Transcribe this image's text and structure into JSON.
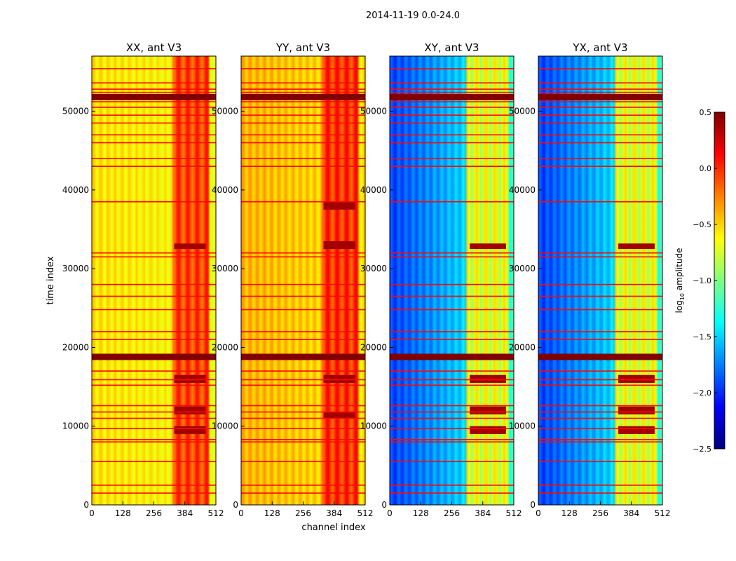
{
  "chart_data": {
    "type": "heatmap",
    "title": "2014-11-19 0.0-24.0",
    "xlabel": "channel index",
    "ylabel": "time index",
    "colorbar": {
      "label": "log10 amplitude",
      "label_base": "log",
      "label_sub": "10",
      "label_rest": " amplitude",
      "range": [
        -2.5,
        0.5
      ],
      "ticks": [
        0.5,
        0.0,
        -0.5,
        -1.0,
        -1.5,
        -2.0,
        -2.5
      ],
      "tick_labels": [
        "0.5",
        "0.0",
        "−0.5",
        "−1.0",
        "−1.5",
        "−2.0",
        "−2.5"
      ],
      "colormap": "jet"
    },
    "xlim": [
      0,
      512
    ],
    "ylim": [
      0,
      57000
    ],
    "x_ticks": [
      0,
      128,
      256,
      384,
      512
    ],
    "y_ticks": [
      0,
      10000,
      20000,
      30000,
      40000,
      50000
    ],
    "panels": [
      {
        "title": "XX, ant V3",
        "base": [
          -0.55,
          -0.65
        ],
        "busy": [
          -0.25,
          0.1
        ],
        "busy_range": [
          330,
          480
        ],
        "strong_bands": [
          [
            9000,
            10000
          ],
          [
            11500,
            12500
          ],
          [
            15500,
            16500
          ],
          [
            32500,
            33200
          ]
        ]
      },
      {
        "title": "YY, ant V3",
        "base": [
          -0.4,
          -0.55
        ],
        "busy": [
          -0.2,
          0.15
        ],
        "busy_range": [
          330,
          480
        ],
        "strong_bands": [
          [
            11000,
            11800
          ],
          [
            15500,
            16500
          ],
          [
            32500,
            33500
          ],
          [
            37500,
            38500
          ]
        ]
      },
      {
        "title": "XY, ant V3",
        "base": [
          -1.95,
          -1.2
        ],
        "busy": [
          -0.9,
          -0.5
        ],
        "busy_range": [
          320,
          490
        ],
        "strong_bands": [
          [
            9000,
            10000
          ],
          [
            11500,
            12500
          ],
          [
            15500,
            16500
          ],
          [
            32500,
            33200
          ]
        ]
      },
      {
        "title": "YX, ant V3",
        "base": [
          -1.95,
          -1.2
        ],
        "busy": [
          -0.9,
          -0.5
        ],
        "busy_range": [
          320,
          490
        ],
        "strong_bands": [
          [
            9000,
            10000
          ],
          [
            11500,
            12500
          ],
          [
            15500,
            16500
          ],
          [
            32500,
            33200
          ]
        ]
      }
    ],
    "flagged_rows": [
      1500,
      2500,
      5500,
      8000,
      8300,
      9700,
      11000,
      11800,
      12600,
      15200,
      15900,
      17000,
      18500,
      18800,
      19100,
      21000,
      22000,
      24800,
      26500,
      28000,
      31500,
      32000,
      38500,
      43000,
      44000,
      46000,
      47000,
      48500,
      49500,
      50500,
      51200,
      51600,
      52000,
      52400,
      52800,
      53600,
      55400
    ],
    "saturated_rows": [
      [
        18400,
        19200
      ],
      [
        51400,
        52200
      ]
    ]
  }
}
